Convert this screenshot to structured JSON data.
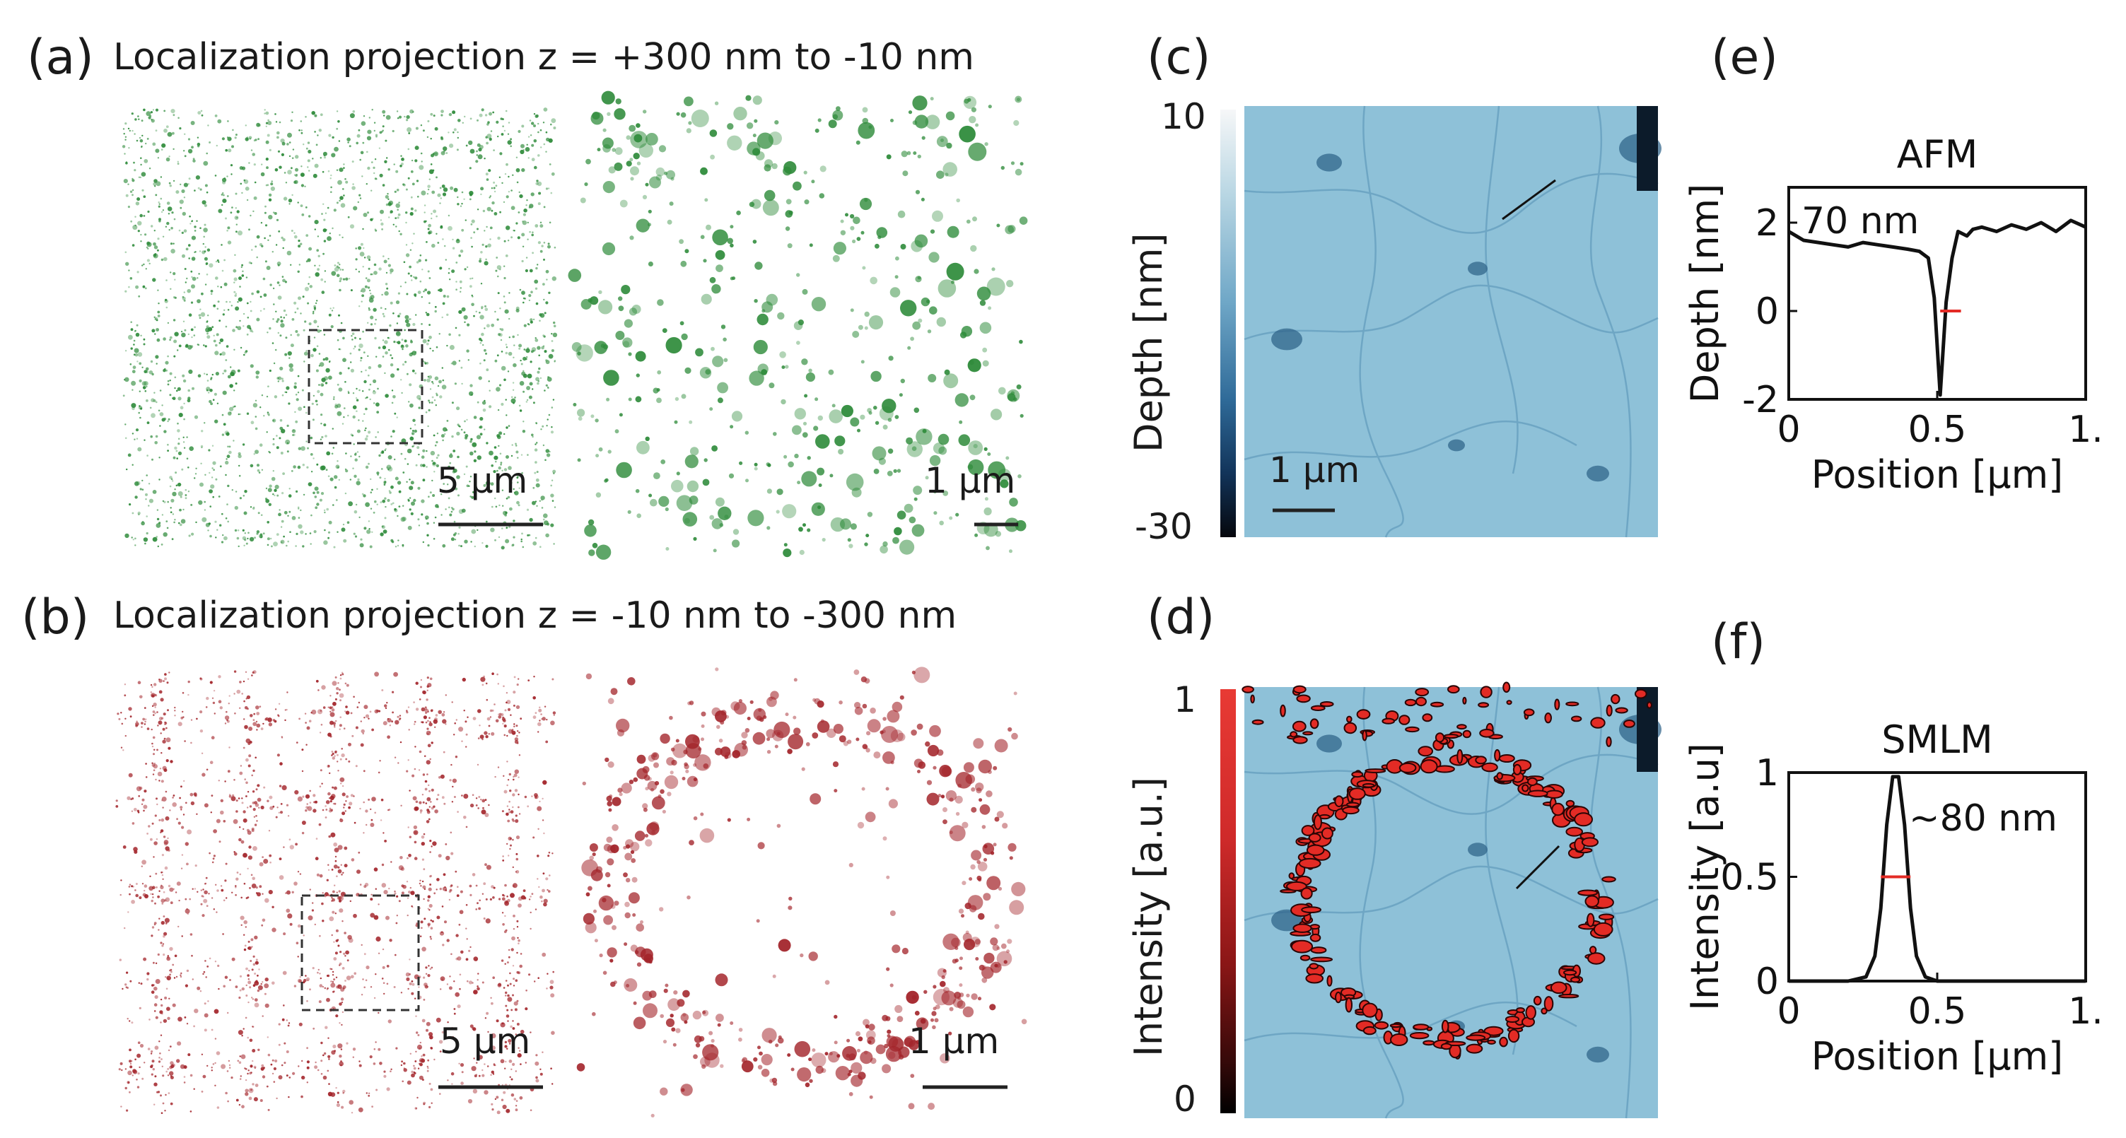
{
  "panels": {
    "a": {
      "label": "(a)",
      "title": "Localization projection z = +300 nm to -10 nm",
      "scalebar_left": "5 μm",
      "scalebar_right": "1 μm",
      "color": "#2e8b3a"
    },
    "b": {
      "label": "(b)",
      "title": "Localization projection z = -10 nm to -300 nm",
      "scalebar_left": "5 μm",
      "scalebar_right": "1 μm",
      "color": "#a3242a"
    },
    "c": {
      "label": "(c)",
      "colorbar_top": "10",
      "colorbar_bottom": "-30",
      "colorbar_title": "Depth [nm]",
      "scalebar": "1 μm"
    },
    "d": {
      "label": "(d)",
      "colorbar_top": "1",
      "colorbar_bottom": "0",
      "colorbar_title": "Intensity [a.u.]"
    },
    "e": {
      "label": "(e)"
    },
    "f": {
      "label": "(f)"
    }
  },
  "chart_data": [
    {
      "panel": "e",
      "type": "line",
      "title": "AFM",
      "xlabel": "Position [μm]",
      "ylabel": "Depth [nm]",
      "xlim": [
        0,
        1
      ],
      "ylim": [
        -2,
        2.8
      ],
      "xticks": [
        "0",
        "0.5",
        "1."
      ],
      "yticks": [
        "2",
        "0",
        "-2"
      ],
      "annotation": "70 nm",
      "series": [
        {
          "x": [
            0,
            0.05,
            0.1,
            0.15,
            0.2,
            0.25,
            0.3,
            0.35,
            0.4,
            0.44,
            0.47,
            0.49,
            0.51,
            0.53,
            0.55,
            0.57,
            0.6,
            0.62,
            0.65,
            0.7,
            0.75,
            0.8,
            0.85,
            0.9,
            0.95,
            1.0
          ],
          "y": [
            1.8,
            1.6,
            1.55,
            1.5,
            1.45,
            1.55,
            1.5,
            1.45,
            1.4,
            1.35,
            1.2,
            0.3,
            -1.9,
            0.2,
            1.2,
            1.8,
            1.7,
            1.85,
            1.9,
            1.8,
            1.95,
            1.85,
            2.0,
            1.8,
            2.05,
            1.9
          ]
        }
      ],
      "fwhm_marker": {
        "x_start": 0.51,
        "x_end": 0.58,
        "y": 0
      }
    },
    {
      "panel": "f",
      "type": "line",
      "title": "SMLM",
      "xlabel": "Position [μm]",
      "ylabel": "Intensity [a.u]",
      "xlim": [
        0,
        1
      ],
      "ylim": [
        0,
        1
      ],
      "xticks": [
        "0",
        "0.5",
        "1."
      ],
      "yticks": [
        "1",
        "0.5",
        "0"
      ],
      "annotation": "~80 nm",
      "series": [
        {
          "x": [
            0,
            0.1,
            0.2,
            0.26,
            0.29,
            0.31,
            0.33,
            0.35,
            0.37,
            0.39,
            0.41,
            0.43,
            0.46,
            0.5,
            0.6,
            0.8,
            1.0
          ],
          "y": [
            0,
            0,
            0,
            0.02,
            0.12,
            0.35,
            0.75,
            0.98,
            0.98,
            0.75,
            0.35,
            0.12,
            0.02,
            0,
            0,
            0,
            0
          ]
        }
      ],
      "fwhm_marker": {
        "x_start": 0.31,
        "x_end": 0.41,
        "y": 0.5
      }
    }
  ]
}
